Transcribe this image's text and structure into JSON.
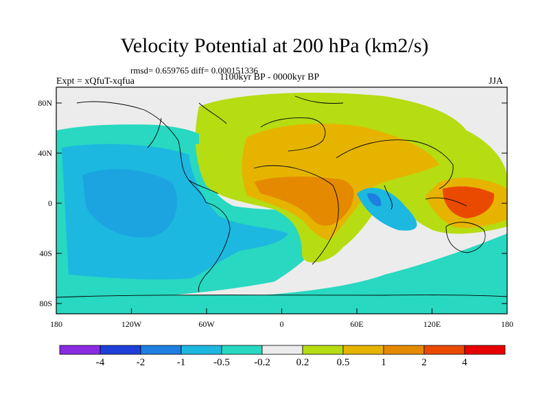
{
  "header": {
    "title": "Velocity Potential at 200 hPa (km2/s)",
    "stats": "rmsd= 0.659765 diff= 0.000151336",
    "experiment": "Expt = xQfuT-xqfua",
    "period": "1100kyr BP - 0000kyr BP",
    "season": "JJA"
  },
  "map": {
    "lat_ticks": [
      "80N",
      "40N",
      "0",
      "40S",
      "80S"
    ],
    "lon_ticks": [
      "180",
      "120W",
      "60W",
      "0",
      "60E",
      "120E",
      "180"
    ]
  },
  "colorbar": {
    "labels": [
      "-4",
      "-2",
      "-1",
      "-0.5",
      "-0.2",
      "0.2",
      "0.5",
      "1",
      "2",
      "4"
    ],
    "colors": [
      "#8a2be2",
      "#1f3fd8",
      "#1e7fe0",
      "#1cb8e0",
      "#28d8c0",
      "#ececec",
      "#b6dc12",
      "#e6b400",
      "#e58a00",
      "#ea4a00",
      "#e80000"
    ]
  }
}
